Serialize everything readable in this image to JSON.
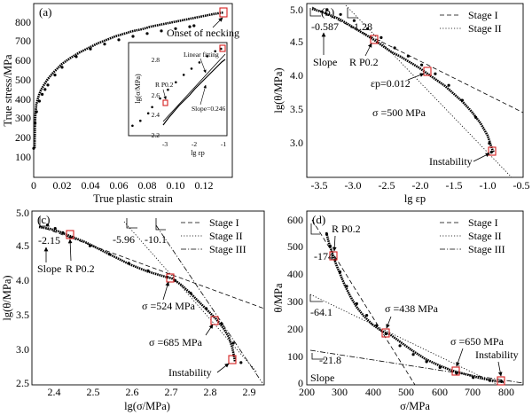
{
  "chart_data": [
    {
      "id": "a",
      "type": "scatter",
      "panel_label": "(a)",
      "xlabel": "True plastic strain",
      "ylabel": "True stress/MPa",
      "xlim": [
        0,
        0.14
      ],
      "ylim": [
        0,
        900
      ],
      "x_ticks": [
        "0",
        "0.02",
        "0.04",
        "0.06",
        "0.08",
        "0.10",
        "0.12"
      ],
      "y_ticks": [
        "100",
        "200",
        "300",
        "400",
        "500",
        "600",
        "700",
        "800"
      ],
      "points": [
        [
          0.0,
          150
        ],
        [
          0.001,
          280
        ],
        [
          0.002,
          340
        ],
        [
          0.004,
          395
        ],
        [
          0.006,
          430
        ],
        [
          0.008,
          455
        ],
        [
          0.01,
          478
        ],
        [
          0.015,
          530
        ],
        [
          0.02,
          570
        ],
        [
          0.03,
          625
        ],
        [
          0.04,
          665
        ],
        [
          0.05,
          690
        ],
        [
          0.06,
          712
        ],
        [
          0.07,
          730
        ],
        [
          0.08,
          745
        ],
        [
          0.09,
          758
        ],
        [
          0.1,
          770
        ],
        [
          0.11,
          780
        ],
        [
          0.113,
          785
        ]
      ],
      "annotations": [
        {
          "text": "Onset of necking",
          "x": 0.113,
          "y": 785
        }
      ],
      "inset": {
        "xlabel": "lg εp",
        "ylabel": "lg(σ/MPa)",
        "xlim": [
          -3.3,
          -0.8
        ],
        "ylim": [
          2.2,
          2.95
        ],
        "x_ticks": [
          "-3",
          "-2",
          "-1"
        ],
        "y_ticks": [
          "2.2",
          "2.4",
          "2.6",
          "2.8"
        ],
        "points": [
          [
            -3.2,
            2.28
          ],
          [
            -3.0,
            2.32
          ],
          [
            -2.8,
            2.38
          ],
          [
            -2.7,
            2.43
          ],
          [
            -2.5,
            2.5
          ],
          [
            -2.3,
            2.57
          ],
          [
            -2.1,
            2.63
          ],
          [
            -1.9,
            2.69
          ],
          [
            -1.7,
            2.74
          ],
          [
            -1.5,
            2.79
          ],
          [
            -1.3,
            2.84
          ],
          [
            -1.1,
            2.88
          ],
          [
            -0.95,
            2.9
          ]
        ],
        "annotations": [
          "Linear fitting",
          "R P0.2",
          "Slope=0.246"
        ]
      }
    },
    {
      "id": "b",
      "type": "scatter",
      "panel_label": "(b)",
      "xlabel": "lg εp",
      "ylabel": "lg(θ/MPa)",
      "xlim": [
        -3.7,
        -0.5
      ],
      "ylim": [
        2.5,
        5.05
      ],
      "x_ticks": [
        "-3.5",
        "-3.0",
        "-2.5",
        "-2.0",
        "-1.5",
        "-1.0",
        "-0.5"
      ],
      "y_ticks": [
        "3.0",
        "3.5",
        "4.0",
        "4.5",
        "5.0"
      ],
      "points": [
        [
          -3.4,
          4.96
        ],
        [
          -3.2,
          4.89
        ],
        [
          -3.0,
          4.8
        ],
        [
          -2.8,
          4.68
        ],
        [
          -2.6,
          4.55
        ],
        [
          -2.4,
          4.4
        ],
        [
          -2.2,
          4.28
        ],
        [
          -2.0,
          4.15
        ],
        [
          -1.8,
          4.02
        ],
        [
          -1.6,
          3.85
        ],
        [
          -1.4,
          3.63
        ],
        [
          -1.2,
          3.38
        ],
        [
          -1.0,
          3.0
        ],
        [
          -0.97,
          2.87
        ]
      ],
      "legend": [
        "Stage I",
        "Stage II"
      ],
      "slopes": [
        "-0.587",
        "-1.28"
      ],
      "annotations": [
        "Slope",
        "R P0.2",
        "εp=0.012",
        "σ =500 MPa",
        "Instability"
      ]
    },
    {
      "id": "c",
      "type": "scatter",
      "panel_label": "(c)",
      "xlabel": "lg(σ/MPa)",
      "ylabel": "lg(θ/MPa)",
      "xlim": [
        2.35,
        2.95
      ],
      "ylim": [
        2.5,
        5.0
      ],
      "x_ticks": [
        "2.4",
        "2.5",
        "2.6",
        "2.7",
        "2.8",
        "2.9"
      ],
      "y_ticks": [
        "2.5",
        "3.0",
        "3.5",
        "4.0",
        "4.5",
        "5.0"
      ],
      "points": [
        [
          2.39,
          4.8
        ],
        [
          2.41,
          4.75
        ],
        [
          2.43,
          4.69
        ],
        [
          2.45,
          4.62
        ],
        [
          2.5,
          4.5
        ],
        [
          2.55,
          4.38
        ],
        [
          2.6,
          4.25
        ],
        [
          2.65,
          4.14
        ],
        [
          2.7,
          4.05
        ],
        [
          2.72,
          4.0
        ],
        [
          2.76,
          3.82
        ],
        [
          2.8,
          3.6
        ],
        [
          2.84,
          3.38
        ],
        [
          2.87,
          3.1
        ],
        [
          2.89,
          2.82
        ]
      ],
      "legend": [
        "Stage I",
        "Stage II",
        "Stage III"
      ],
      "slopes": [
        "-2.15",
        "-5.96",
        "-10.1"
      ],
      "annotations": [
        "Slope",
        "R P0.2",
        "σ =524 MPa",
        "σ =685 MPa",
        "Instability"
      ]
    },
    {
      "id": "d",
      "type": "scatter",
      "panel_label": "(d)",
      "xlabel": "σ/MPa",
      "ylabel": "θ/MPa",
      "xlim": [
        200,
        850
      ],
      "ylim": [
        0,
        600
      ],
      "x_ticks": [
        "200",
        "300",
        "400",
        "500",
        "600",
        "700",
        "800"
      ],
      "y_ticks": [
        "0",
        "100",
        "200",
        "300",
        "400",
        "500",
        "600"
      ],
      "points": [
        [
          260,
          520
        ],
        [
          270,
          480
        ],
        [
          285,
          432
        ],
        [
          300,
          390
        ],
        [
          320,
          340
        ],
        [
          350,
          280
        ],
        [
          380,
          240
        ],
        [
          410,
          205
        ],
        [
          438,
          176
        ],
        [
          480,
          135
        ],
        [
          520,
          105
        ],
        [
          560,
          80
        ],
        [
          600,
          60
        ],
        [
          650,
          40
        ],
        [
          700,
          25
        ],
        [
          750,
          15
        ],
        [
          785,
          12
        ]
      ],
      "legend": [
        "Stage I",
        "Stage II",
        "Stage III"
      ],
      "slopes": [
        "-174",
        "-64.1",
        "-21.8"
      ],
      "annotations": [
        "R P0.2",
        "σ =438 MPa",
        "σ =650 MPa",
        "Instability",
        "Slope"
      ]
    }
  ]
}
